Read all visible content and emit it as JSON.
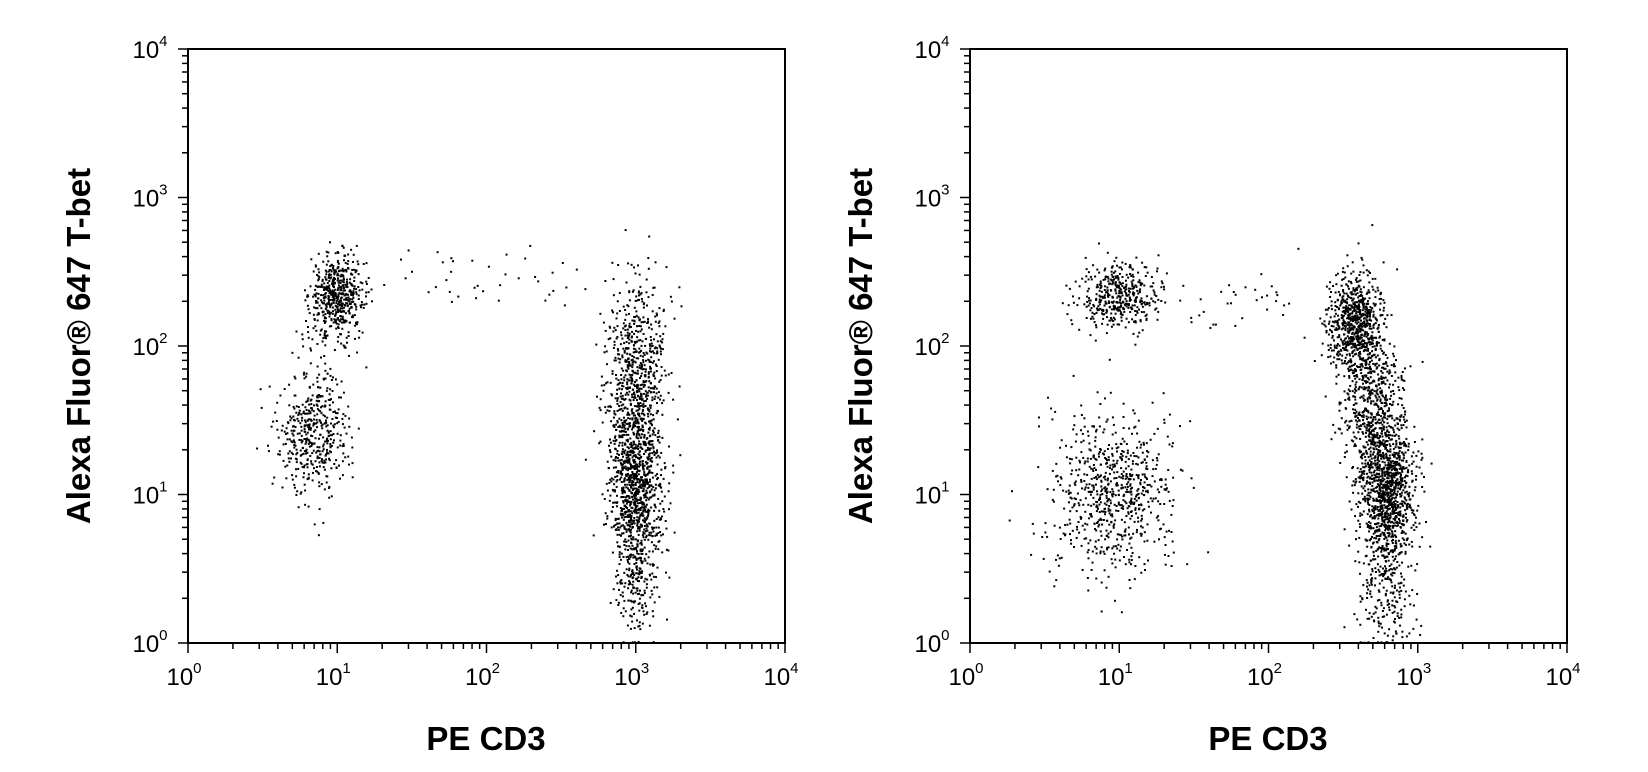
{
  "chart_data": [
    {
      "type": "scatter",
      "xlabel": "PE CD3",
      "ylabel": "Alexa Fluor® 647 T-bet",
      "xscale": "log",
      "yscale": "log",
      "xlim": [
        1,
        10000
      ],
      "ylim": [
        1,
        10000
      ],
      "x_ticks": [
        {
          "value": 1,
          "base": "10",
          "exp": "0"
        },
        {
          "value": 10,
          "base": "10",
          "exp": "1"
        },
        {
          "value": 100,
          "base": "10",
          "exp": "2"
        },
        {
          "value": 1000,
          "base": "10",
          "exp": "3"
        },
        {
          "value": 10000,
          "base": "10",
          "exp": "4"
        }
      ],
      "y_ticks": [
        {
          "value": 1,
          "base": "10",
          "exp": "0"
        },
        {
          "value": 10,
          "base": "10",
          "exp": "1"
        },
        {
          "value": 100,
          "base": "10",
          "exp": "2"
        },
        {
          "value": 1000,
          "base": "10",
          "exp": "3"
        },
        {
          "value": 10000,
          "base": "10",
          "exp": "4"
        }
      ],
      "grid": false,
      "marker_color": "#000000",
      "populations": [
        {
          "x": 10,
          "y": 220,
          "sx_dec": 0.09,
          "sy_dec": 0.13,
          "n": 520
        },
        {
          "x": 7,
          "y": 25,
          "sx_dec": 0.12,
          "sy_dec": 0.2,
          "n": 420
        },
        {
          "x": 1000,
          "y": 12,
          "sx_dec": 0.09,
          "sy_dec": 0.3,
          "n": 1050
        },
        {
          "x": 1000,
          "y": 70,
          "sx_dec": 0.1,
          "sy_dec": 0.3,
          "n": 600
        },
        {
          "x": 1050,
          "y": 2.5,
          "sx_dec": 0.07,
          "sy_dec": 0.2,
          "n": 170
        },
        {
          "x": 120,
          "y": 280,
          "sx_dec": 0.45,
          "sy_dec": 0.12,
          "n": 45
        },
        {
          "x": 8,
          "y": 80,
          "sx_dec": 0.1,
          "sy_dec": 0.25,
          "n": 70
        }
      ]
    },
    {
      "type": "scatter",
      "xlabel": "PE CD3",
      "ylabel": "Alexa Fluor® 647 T-bet",
      "xscale": "log",
      "yscale": "log",
      "xlim": [
        1,
        10000
      ],
      "ylim": [
        1,
        10000
      ],
      "x_ticks": [
        {
          "value": 1,
          "base": "10",
          "exp": "0"
        },
        {
          "value": 10,
          "base": "10",
          "exp": "1"
        },
        {
          "value": 100,
          "base": "10",
          "exp": "2"
        },
        {
          "value": 1000,
          "base": "10",
          "exp": "3"
        },
        {
          "value": 10000,
          "base": "10",
          "exp": "4"
        }
      ],
      "y_ticks": [
        {
          "value": 1,
          "base": "10",
          "exp": "0"
        },
        {
          "value": 10,
          "base": "10",
          "exp": "1"
        },
        {
          "value": 100,
          "base": "10",
          "exp": "2"
        },
        {
          "value": 1000,
          "base": "10",
          "exp": "3"
        },
        {
          "value": 10000,
          "base": "10",
          "exp": "4"
        }
      ],
      "grid": false,
      "marker_color": "#000000",
      "populations": [
        {
          "x": 10,
          "y": 220,
          "sx_dec": 0.13,
          "sy_dec": 0.11,
          "n": 420
        },
        {
          "x": 9,
          "y": 10,
          "sx_dec": 0.2,
          "sy_dec": 0.28,
          "n": 720
        },
        {
          "x": 380,
          "y": 140,
          "sx_dec": 0.09,
          "sy_dec": 0.16,
          "n": 750
        },
        {
          "x": 620,
          "y": 11,
          "sx_dec": 0.09,
          "sy_dec": 0.26,
          "n": 1150
        },
        {
          "x": 480,
          "y": 40,
          "sx_dec": 0.1,
          "sy_dec": 0.25,
          "n": 500
        },
        {
          "x": 600,
          "y": 2.2,
          "sx_dec": 0.1,
          "sy_dec": 0.2,
          "n": 190
        },
        {
          "x": 80,
          "y": 180,
          "sx_dec": 0.4,
          "sy_dec": 0.15,
          "n": 40
        }
      ]
    }
  ]
}
